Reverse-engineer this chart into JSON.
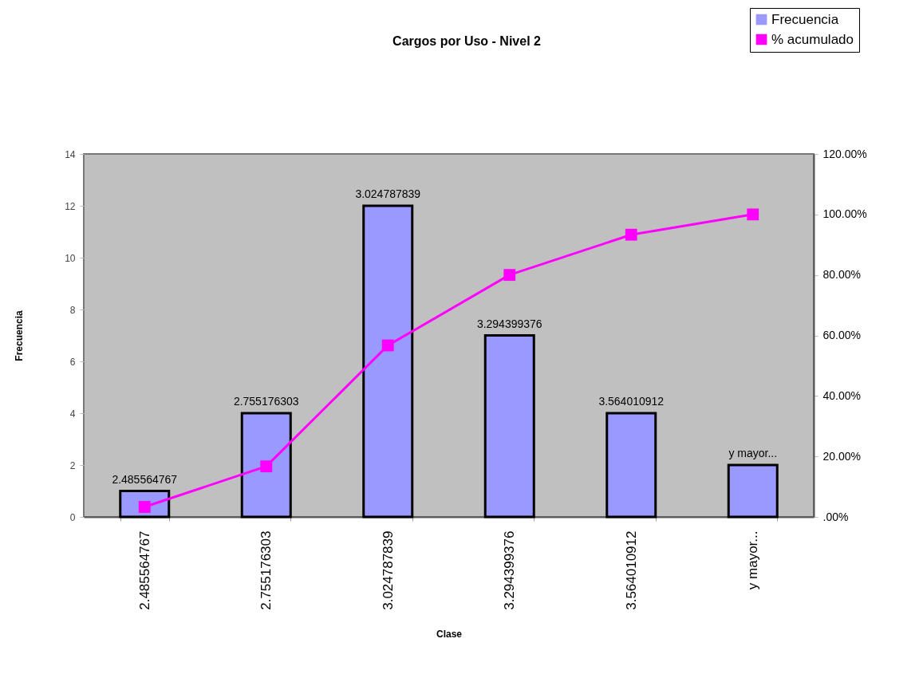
{
  "chart_data": {
    "type": "bar",
    "title": "Cargos por Uso - Nivel 2",
    "xlabel": "Clase",
    "ylabel": "Frecuencia",
    "categories": [
      "2.485564767",
      "2.755176303",
      "3.024787839",
      "3.294399376",
      "3.564010912",
      "y mayor..."
    ],
    "series": [
      {
        "name": "Frecuencia",
        "color": "#9999ff",
        "values": [
          1,
          4,
          12,
          7,
          4,
          2
        ]
      },
      {
        "name": "% acumulado",
        "type": "line",
        "axis": "y2",
        "color": "#ff00ff",
        "marker": "square",
        "values": [
          3.3,
          16.7,
          56.7,
          80,
          93.3,
          100
        ]
      }
    ],
    "annotations": [
      {
        "text": "2.485564767",
        "x": "2.485564767",
        "y": 1
      },
      {
        "text": "2.755176303",
        "x": "2.755176303",
        "y": 4
      },
      {
        "text": "3.024787839",
        "x": "3.024787839",
        "y": 12
      },
      {
        "text": "3.294399376",
        "x": "3.294399376",
        "y": 7
      },
      {
        "text": "3.564010912",
        "x": "3.564010912",
        "y": 4
      },
      {
        "text": "y mayor...",
        "x": "y mayor...",
        "y": 2
      }
    ],
    "ylim": [
      0,
      14
    ],
    "yticks": [
      0,
      2,
      4,
      6,
      8,
      10,
      12,
      14
    ],
    "y2lim": [
      0,
      120
    ],
    "y2ticks": [
      {
        "value": 0,
        "label": ".00%"
      },
      {
        "value": 20,
        "label": "20.00%"
      },
      {
        "value": 40,
        "label": "40.00%"
      },
      {
        "value": 60,
        "label": "60.00%"
      },
      {
        "value": 80,
        "label": "80.00%"
      },
      {
        "value": 100,
        "label": "100.00%"
      },
      {
        "value": 120,
        "label": "120.00%"
      }
    ],
    "legend": "top right"
  }
}
